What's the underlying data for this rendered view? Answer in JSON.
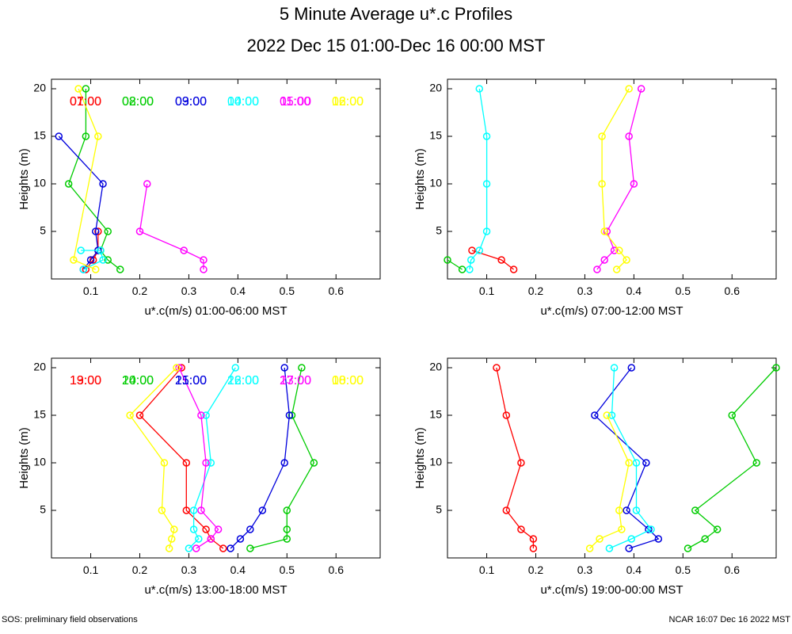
{
  "header": {
    "title": "5 Minute Average u*.c Profiles",
    "subtitle": "2022 Dec 15 01:00-Dec 16 00:00 MST"
  },
  "footer": {
    "left": "SOS: preliminary field observations",
    "right": "NCAR 16:07 Dec 16 2022 MST"
  },
  "colors": [
    "#ff0000",
    "#00cc00",
    "#0000dd",
    "#00ffff",
    "#ff00ff",
    "#ffff00"
  ],
  "chart_data": [
    {
      "type": "line",
      "xlabel": "u*.c(m/s) 01:00-06:00 MST",
      "ylabel": "Heights (m)",
      "xlim": [
        0.02,
        0.69
      ],
      "ylim": [
        0,
        21
      ],
      "xticks": [
        "0.1",
        "0.2",
        "0.3",
        "0.4",
        "0.5",
        "0.6"
      ],
      "yticks": [
        "5",
        "10",
        "15",
        "20"
      ],
      "series": [
        {
          "name": "01:00",
          "points": [
            [
              0.09,
              1
            ],
            [
              0.105,
              2
            ],
            [
              0.115,
              3
            ],
            [
              0.115,
              5
            ]
          ]
        },
        {
          "name": "02:00",
          "points": [
            [
              0.16,
              1
            ],
            [
              0.135,
              2
            ],
            [
              0.12,
              3
            ],
            [
              0.135,
              5
            ],
            [
              0.055,
              10
            ],
            [
              0.09,
              15
            ],
            [
              0.09,
              20
            ]
          ]
        },
        {
          "name": "03:00",
          "points": [
            [
              0.085,
              1
            ],
            [
              0.1,
              2
            ],
            [
              0.115,
              3
            ],
            [
              0.11,
              5
            ],
            [
              0.125,
              10
            ],
            [
              0.035,
              15
            ]
          ]
        },
        {
          "name": "04:00",
          "points": [
            [
              0.085,
              1
            ],
            [
              0.125,
              2
            ],
            [
              0.12,
              3
            ],
            [
              0.08,
              3
            ]
          ]
        },
        {
          "name": "05:00",
          "points": [
            [
              0.33,
              1
            ],
            [
              0.33,
              2
            ],
            [
              0.29,
              3
            ],
            [
              0.2,
              5
            ],
            [
              0.215,
              10
            ]
          ]
        },
        {
          "name": "06:00",
          "points": [
            [
              0.11,
              1
            ],
            [
              0.065,
              2
            ],
            [
              0.115,
              15
            ],
            [
              0.075,
              20
            ]
          ]
        }
      ]
    },
    {
      "type": "line",
      "xlabel": "u*.c(m/s) 07:00-12:00 MST",
      "ylabel": "Heights (m)",
      "xlim": [
        0.02,
        0.69
      ],
      "ylim": [
        0,
        21
      ],
      "xticks": [
        "0.1",
        "0.2",
        "0.3",
        "0.4",
        "0.5",
        "0.6"
      ],
      "yticks": [
        "5",
        "10",
        "15",
        "20"
      ],
      "series": [
        {
          "name": "07:00",
          "points": [
            [
              0.155,
              1
            ],
            [
              0.13,
              2
            ],
            [
              0.07,
              3
            ]
          ]
        },
        {
          "name": "08:00",
          "points": [
            [
              0.05,
              1
            ],
            [
              0.02,
              2
            ]
          ]
        },
        {
          "name": "09:00",
          "points": []
        },
        {
          "name": "10:00",
          "points": [
            [
              0.065,
              1
            ],
            [
              0.068,
              2
            ],
            [
              0.085,
              3
            ],
            [
              0.1,
              5
            ],
            [
              0.1,
              10
            ],
            [
              0.1,
              15
            ],
            [
              0.085,
              20
            ]
          ]
        },
        {
          "name": "11:00",
          "points": [
            [
              0.325,
              1
            ],
            [
              0.34,
              2
            ],
            [
              0.36,
              3
            ],
            [
              0.345,
              5
            ],
            [
              0.4,
              10
            ],
            [
              0.39,
              15
            ],
            [
              0.415,
              20
            ]
          ]
        },
        {
          "name": "12:00",
          "points": [
            [
              0.365,
              1
            ],
            [
              0.385,
              2
            ],
            [
              0.37,
              3
            ],
            [
              0.34,
              5
            ],
            [
              0.335,
              10
            ],
            [
              0.335,
              15
            ],
            [
              0.39,
              20
            ]
          ]
        }
      ]
    },
    {
      "type": "line",
      "xlabel": "u*.c(m/s) 13:00-18:00 MST",
      "ylabel": "Heights (m)",
      "xlim": [
        0.02,
        0.69
      ],
      "ylim": [
        0,
        21
      ],
      "xticks": [
        "0.1",
        "0.2",
        "0.3",
        "0.4",
        "0.5",
        "0.6"
      ],
      "yticks": [
        "5",
        "10",
        "15",
        "20"
      ],
      "series": [
        {
          "name": "13:00",
          "points": [
            [
              0.37,
              1
            ],
            [
              0.345,
              2
            ],
            [
              0.335,
              3
            ],
            [
              0.295,
              5
            ],
            [
              0.295,
              10
            ],
            [
              0.2,
              15
            ],
            [
              0.285,
              20
            ]
          ]
        },
        {
          "name": "14:00",
          "points": [
            [
              0.425,
              1
            ],
            [
              0.5,
              2
            ],
            [
              0.5,
              3
            ],
            [
              0.5,
              5
            ],
            [
              0.555,
              10
            ],
            [
              0.51,
              15
            ],
            [
              0.53,
              20
            ]
          ]
        },
        {
          "name": "15:00",
          "points": [
            [
              0.385,
              1
            ],
            [
              0.405,
              2
            ],
            [
              0.425,
              3
            ],
            [
              0.45,
              5
            ],
            [
              0.495,
              10
            ],
            [
              0.505,
              15
            ],
            [
              0.495,
              20
            ]
          ]
        },
        {
          "name": "16:00",
          "points": [
            [
              0.3,
              1
            ],
            [
              0.32,
              2
            ],
            [
              0.31,
              3
            ],
            [
              0.31,
              5
            ],
            [
              0.345,
              10
            ],
            [
              0.335,
              15
            ],
            [
              0.395,
              20
            ]
          ]
        },
        {
          "name": "17:00",
          "points": [
            [
              0.315,
              1
            ],
            [
              0.345,
              2
            ],
            [
              0.36,
              3
            ],
            [
              0.325,
              5
            ],
            [
              0.335,
              10
            ],
            [
              0.325,
              15
            ],
            [
              0.28,
              20
            ]
          ]
        },
        {
          "name": "18:00",
          "points": [
            [
              0.26,
              1
            ],
            [
              0.265,
              2
            ],
            [
              0.27,
              3
            ],
            [
              0.245,
              5
            ],
            [
              0.25,
              10
            ],
            [
              0.18,
              15
            ],
            [
              0.275,
              20
            ]
          ]
        }
      ]
    },
    {
      "type": "line",
      "xlabel": "u*.c(m/s) 19:00-00:00 MST",
      "ylabel": "Heights (m)",
      "xlim": [
        0.02,
        0.69
      ],
      "ylim": [
        0,
        21
      ],
      "xticks": [
        "0.1",
        "0.2",
        "0.3",
        "0.4",
        "0.5",
        "0.6"
      ],
      "yticks": [
        "5",
        "10",
        "15",
        "20"
      ],
      "series": [
        {
          "name": "19:00",
          "points": [
            [
              0.195,
              1
            ],
            [
              0.195,
              2
            ],
            [
              0.17,
              3
            ],
            [
              0.14,
              5
            ],
            [
              0.17,
              10
            ],
            [
              0.14,
              15
            ],
            [
              0.12,
              20
            ]
          ]
        },
        {
          "name": "20:00",
          "points": [
            [
              0.51,
              1
            ],
            [
              0.545,
              2
            ],
            [
              0.57,
              3
            ],
            [
              0.525,
              5
            ],
            [
              0.65,
              10
            ],
            [
              0.6,
              15
            ],
            [
              0.69,
              20
            ]
          ]
        },
        {
          "name": "21:00",
          "points": [
            [
              0.39,
              1
            ],
            [
              0.45,
              2
            ],
            [
              0.43,
              3
            ],
            [
              0.385,
              5
            ],
            [
              0.425,
              10
            ],
            [
              0.32,
              15
            ],
            [
              0.395,
              20
            ]
          ]
        },
        {
          "name": "22:00",
          "points": [
            [
              0.35,
              1
            ],
            [
              0.395,
              2
            ],
            [
              0.435,
              3
            ],
            [
              0.405,
              5
            ],
            [
              0.405,
              10
            ],
            [
              0.355,
              15
            ],
            [
              0.36,
              20
            ]
          ]
        },
        {
          "name": "23:00",
          "points": []
        },
        {
          "name": "00:00",
          "points": [
            [
              0.31,
              1
            ],
            [
              0.33,
              2
            ],
            [
              0.375,
              3
            ],
            [
              0.37,
              5
            ],
            [
              0.39,
              10
            ],
            [
              0.345,
              15
            ]
          ]
        }
      ]
    }
  ]
}
